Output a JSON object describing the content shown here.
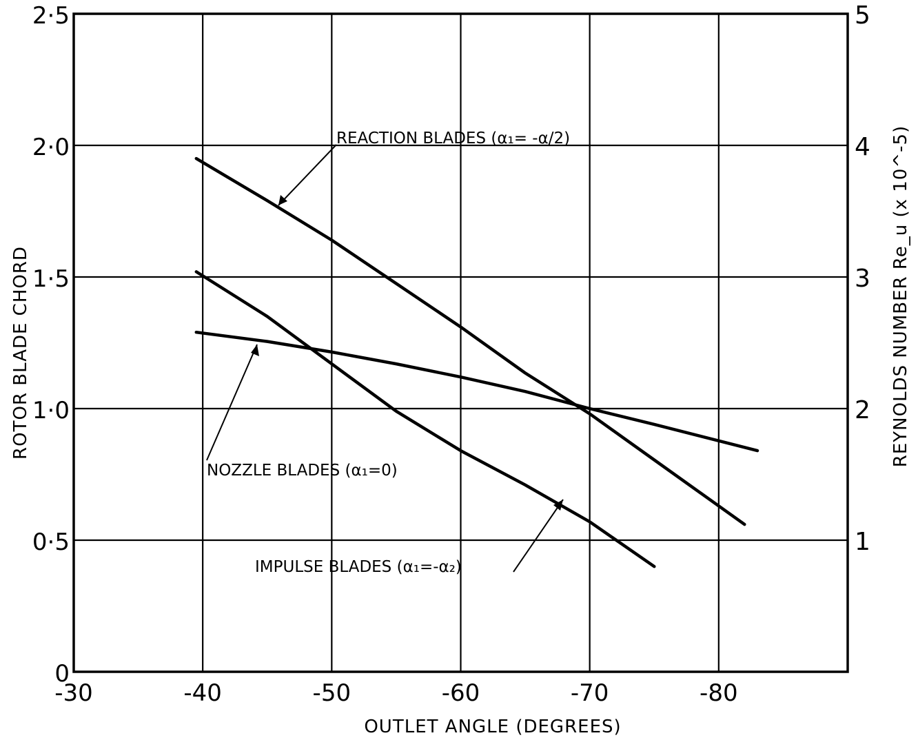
{
  "chart_data": {
    "type": "line",
    "title": "",
    "xlabel": "OUTLET ANGLE (DEGREES)",
    "ylabel": "ROTOR BLADE CHORD",
    "y2label": "REYNOLDS NUMBER Re_u (x 10^-5)",
    "xlim": [
      -30,
      -90
    ],
    "ylim": [
      0,
      2.5
    ],
    "y2lim": [
      0,
      5
    ],
    "x_ticks": [
      -30,
      -40,
      -50,
      -60,
      -70,
      -80
    ],
    "x_tick_labels": [
      "-30",
      "-40",
      "-50",
      "-60",
      "-70",
      "-80"
    ],
    "y_ticks": [
      0,
      0.5,
      1.0,
      1.5,
      2.0,
      2.5
    ],
    "y_tick_labels": [
      "0",
      "0·5",
      "1·0",
      "1·5",
      "2·0",
      "2·5"
    ],
    "y2_ticks": [
      1,
      2,
      3,
      4,
      5
    ],
    "y2_tick_labels": [
      "1",
      "2",
      "3",
      "4",
      "5"
    ],
    "grid": true,
    "series": [
      {
        "name": "REACTION BLADES (α₁ = -α/2)",
        "axis": "right",
        "x": [
          -39.5,
          -45,
          -50,
          -55,
          -60,
          -65,
          -70,
          -75,
          -82
        ],
        "y": [
          3.9,
          3.58,
          3.28,
          2.95,
          2.62,
          2.27,
          1.96,
          1.61,
          1.12
        ]
      },
      {
        "name": "NOZZLE BLADES (α₁ = 0)",
        "axis": "left",
        "x": [
          -39.5,
          -45,
          -50,
          -55,
          -60,
          -65,
          -70,
          -75,
          -83
        ],
        "y": [
          1.29,
          1.255,
          1.215,
          1.17,
          1.12,
          1.065,
          1.0,
          0.94,
          0.84
        ]
      },
      {
        "name": "IMPULSE BLADES (α₁ = -α₂)",
        "axis": "left",
        "x": [
          -39.5,
          -45,
          -50,
          -55,
          -60,
          -65,
          -70,
          -75
        ],
        "y": [
          1.52,
          1.35,
          1.17,
          0.99,
          0.84,
          0.71,
          0.57,
          0.4
        ]
      }
    ],
    "annotations": {
      "reaction": "REACTION BLADES (α₁= -α/2)",
      "nozzle": "NOZZLE BLADES (α₁=0)",
      "impulse": "IMPULSE BLADES (α₁=-α₂)"
    }
  }
}
